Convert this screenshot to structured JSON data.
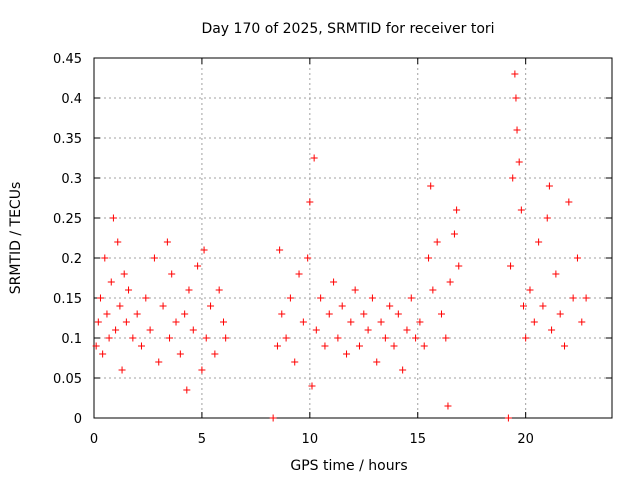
{
  "chart_data": {
    "type": "scatter",
    "title": "Day 170 of 2025, SRMTID for receiver tori",
    "xlabel": "GPS time / hours",
    "ylabel": "SRMTID / TECUs",
    "xlim": [
      0,
      24
    ],
    "ylim": [
      0,
      0.45
    ],
    "xticks": [
      0,
      5,
      10,
      15,
      20
    ],
    "yticks": [
      0,
      0.05,
      0.1,
      0.15,
      0.2,
      0.25,
      0.3,
      0.35,
      0.4,
      0.45
    ],
    "xtick_labels": [
      "0",
      "5",
      "10",
      "15",
      "20"
    ],
    "ytick_labels": [
      "0",
      "0.05",
      "0.1",
      "0.15",
      "0.2",
      "0.25",
      "0.3",
      "0.35",
      "0.4",
      "0.45"
    ],
    "grid": true,
    "marker": "plus",
    "color": "#ff0000",
    "series": [
      {
        "name": "SRMTID",
        "points": [
          [
            0.1,
            0.09
          ],
          [
            0.2,
            0.12
          ],
          [
            0.3,
            0.15
          ],
          [
            0.4,
            0.08
          ],
          [
            0.5,
            0.2
          ],
          [
            0.6,
            0.13
          ],
          [
            0.7,
            0.1
          ],
          [
            0.8,
            0.17
          ],
          [
            0.9,
            0.25
          ],
          [
            1.0,
            0.11
          ],
          [
            1.1,
            0.22
          ],
          [
            1.2,
            0.14
          ],
          [
            1.3,
            0.06
          ],
          [
            1.4,
            0.18
          ],
          [
            1.5,
            0.12
          ],
          [
            1.6,
            0.16
          ],
          [
            1.8,
            0.1
          ],
          [
            2.0,
            0.13
          ],
          [
            2.2,
            0.09
          ],
          [
            2.4,
            0.15
          ],
          [
            2.6,
            0.11
          ],
          [
            2.8,
            0.2
          ],
          [
            3.0,
            0.07
          ],
          [
            3.2,
            0.14
          ],
          [
            3.4,
            0.22
          ],
          [
            3.5,
            0.1
          ],
          [
            3.6,
            0.18
          ],
          [
            3.8,
            0.12
          ],
          [
            4.0,
            0.08
          ],
          [
            4.2,
            0.13
          ],
          [
            4.3,
            0.035
          ],
          [
            4.4,
            0.16
          ],
          [
            4.6,
            0.11
          ],
          [
            4.8,
            0.19
          ],
          [
            5.0,
            0.06
          ],
          [
            5.1,
            0.21
          ],
          [
            5.2,
            0.1
          ],
          [
            5.4,
            0.14
          ],
          [
            5.6,
            0.08
          ],
          [
            5.8,
            0.16
          ],
          [
            6.0,
            0.12
          ],
          [
            6.1,
            0.1
          ],
          [
            8.3,
            0.0
          ],
          [
            8.5,
            0.09
          ],
          [
            8.6,
            0.21
          ],
          [
            8.7,
            0.13
          ],
          [
            8.9,
            0.1
          ],
          [
            9.1,
            0.15
          ],
          [
            9.3,
            0.07
          ],
          [
            9.5,
            0.18
          ],
          [
            9.7,
            0.12
          ],
          [
            9.9,
            0.2
          ],
          [
            10.0,
            0.27
          ],
          [
            10.1,
            0.04
          ],
          [
            10.2,
            0.325
          ],
          [
            10.3,
            0.11
          ],
          [
            10.5,
            0.15
          ],
          [
            10.7,
            0.09
          ],
          [
            10.9,
            0.13
          ],
          [
            11.1,
            0.17
          ],
          [
            11.3,
            0.1
          ],
          [
            11.5,
            0.14
          ],
          [
            11.7,
            0.08
          ],
          [
            11.9,
            0.12
          ],
          [
            12.1,
            0.16
          ],
          [
            12.3,
            0.09
          ],
          [
            12.5,
            0.13
          ],
          [
            12.7,
            0.11
          ],
          [
            12.9,
            0.15
          ],
          [
            13.1,
            0.07
          ],
          [
            13.3,
            0.12
          ],
          [
            13.5,
            0.1
          ],
          [
            13.7,
            0.14
          ],
          [
            13.9,
            0.09
          ],
          [
            14.1,
            0.13
          ],
          [
            14.3,
            0.06
          ],
          [
            14.5,
            0.11
          ],
          [
            14.7,
            0.15
          ],
          [
            14.9,
            0.1
          ],
          [
            15.1,
            0.12
          ],
          [
            15.3,
            0.09
          ],
          [
            15.5,
            0.2
          ],
          [
            15.6,
            0.29
          ],
          [
            15.7,
            0.16
          ],
          [
            15.9,
            0.22
          ],
          [
            16.1,
            0.13
          ],
          [
            16.3,
            0.1
          ],
          [
            16.4,
            0.015
          ],
          [
            16.5,
            0.17
          ],
          [
            16.7,
            0.23
          ],
          [
            16.8,
            0.26
          ],
          [
            16.9,
            0.19
          ],
          [
            19.2,
            0.0
          ],
          [
            19.3,
            0.19
          ],
          [
            19.4,
            0.3
          ],
          [
            19.5,
            0.43
          ],
          [
            19.55,
            0.4
          ],
          [
            19.6,
            0.36
          ],
          [
            19.7,
            0.32
          ],
          [
            19.8,
            0.26
          ],
          [
            19.9,
            0.14
          ],
          [
            20.0,
            0.1
          ],
          [
            20.2,
            0.16
          ],
          [
            20.4,
            0.12
          ],
          [
            20.6,
            0.22
          ],
          [
            20.8,
            0.14
          ],
          [
            21.0,
            0.25
          ],
          [
            21.1,
            0.29
          ],
          [
            21.2,
            0.11
          ],
          [
            21.4,
            0.18
          ],
          [
            21.6,
            0.13
          ],
          [
            21.8,
            0.09
          ],
          [
            22.0,
            0.27
          ],
          [
            22.2,
            0.15
          ],
          [
            22.4,
            0.2
          ],
          [
            22.6,
            0.12
          ],
          [
            22.8,
            0.15
          ]
        ]
      }
    ]
  }
}
